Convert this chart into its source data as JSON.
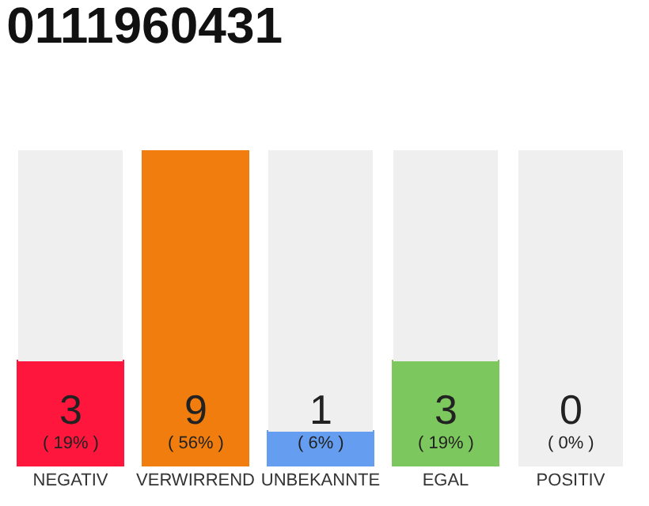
{
  "chart_data": {
    "type": "bar",
    "title": "0111960431",
    "stacked": true,
    "categories": [
      "NEGATIV",
      "VERWIRREND",
      "UNBEKANNTE",
      "EGAL",
      "POSITIV"
    ],
    "ylim": [
      0,
      9
    ],
    "series": [
      {
        "colors": [
          "#ff163c",
          "#f07d0e",
          "#659ef0",
          "#7dc85e",
          "#22aa44"
        ],
        "values": [
          3,
          9,
          1,
          3,
          0
        ],
        "value_labels": [
          "3\n( 19% )",
          "9\n( 56% )",
          "1\n( 6% )",
          "3\n( 19% )",
          "0\n( 0% )"
        ]
      },
      {
        "color": "#efefef",
        "values": [
          6,
          0,
          8,
          6,
          9
        ]
      }
    ]
  }
}
